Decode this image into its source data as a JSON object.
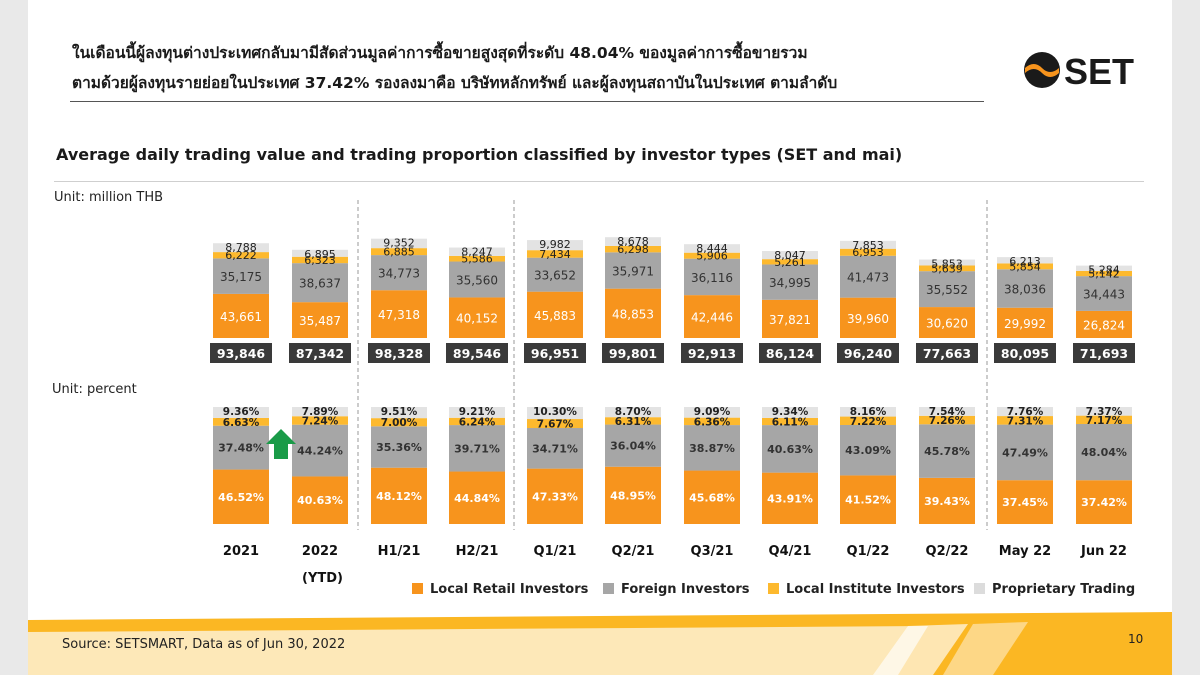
{
  "header": {
    "line1": "ในเดือนนี้ผู้ลงทุนต่างประเทศกลับมามีสัดส่วนมูลค่าการซื้อขายสูงสุดที่ระดับ  48.04% ของมูลค่าการซื้อขายรวม",
    "line2": "ตามด้วยผู้ลงทุนรายย่อยในประเทศ 37.42% รองลงมาคือ บริษัทหลักทรัพย์ และผู้ลงทุนสถาบันในประเทศ  ตามลำดับ"
  },
  "logo": {
    "text": "SET",
    "icon": "set-logo-icon"
  },
  "colors": {
    "retail": "#f7941d",
    "foreign": "#a6a6a6",
    "institute": "#fdb92e",
    "prop": "#e3e3e3",
    "total_box": "#3a3a3a",
    "arrow": "#1a9b48"
  },
  "chart_data": {
    "type": "bar",
    "title": "Average daily trading value and trading proportion classified by investor types (SET and mai)",
    "categories": [
      "2021",
      "2022",
      "H1/21",
      "H2/21",
      "Q1/21",
      "Q2/21",
      "Q3/21",
      "Q4/21",
      "Q1/22",
      "Q2/22",
      "May 22",
      "Jun 22"
    ],
    "category_note": "(YTD)",
    "legend": [
      "Local Retail Investors",
      "Foreign Investors",
      "Local Institute Investors",
      "Proprietary Trading"
    ],
    "value_unit": "Unit: million THB",
    "percent_unit": "Unit: percent",
    "values": {
      "retail": [
        "43,661",
        "35,487",
        "47,318",
        "40,152",
        "45,883",
        "48,853",
        "42,446",
        "37,821",
        "39,960",
        "30,620",
        "29,992",
        "26,824"
      ],
      "foreign": [
        "35,175",
        "38,637",
        "34,773",
        "35,560",
        "33,652",
        "35,971",
        "36,116",
        "34,995",
        "41,473",
        "35,552",
        "38,036",
        "34,443"
      ],
      "institute": [
        "6,222",
        "6,323",
        "6,885",
        "5,586",
        "7,434",
        "6,298",
        "5,906",
        "5,261",
        "6,953",
        "5,639",
        "5,854",
        "5,142"
      ],
      "prop": [
        "8,788",
        "6,895",
        "9,352",
        "8,247",
        "9,982",
        "8,678",
        "8,444",
        "8,047",
        "7,853",
        "5,853",
        "6,213",
        "5,284"
      ],
      "total": [
        "93,846",
        "87,342",
        "98,328",
        "89,546",
        "96,951",
        "99,801",
        "92,913",
        "86,124",
        "96,240",
        "77,663",
        "80,095",
        "71,693"
      ]
    },
    "percent": {
      "retail": [
        "46.52%",
        "40.63%",
        "48.12%",
        "44.84%",
        "47.33%",
        "48.95%",
        "45.68%",
        "43.91%",
        "41.52%",
        "39.43%",
        "37.45%",
        "37.42%"
      ],
      "foreign": [
        "37.48%",
        "44.24%",
        "35.36%",
        "39.71%",
        "34.71%",
        "36.04%",
        "38.87%",
        "40.63%",
        "43.09%",
        "45.78%",
        "47.49%",
        "48.04%"
      ],
      "institute": [
        "6.63%",
        "7.24%",
        "7.00%",
        "6.24%",
        "7.67%",
        "6.31%",
        "6.36%",
        "6.11%",
        "7.22%",
        "7.26%",
        "7.31%",
        "7.17%"
      ],
      "prop": [
        "9.36%",
        "7.89%",
        "9.51%",
        "9.21%",
        "10.30%",
        "8.70%",
        "9.09%",
        "9.34%",
        "8.16%",
        "7.54%",
        "7.76%",
        "7.37%"
      ]
    }
  },
  "footer": {
    "source": "Source: SETSMART,  Data as of Jun 30, 2022",
    "page": "10"
  }
}
